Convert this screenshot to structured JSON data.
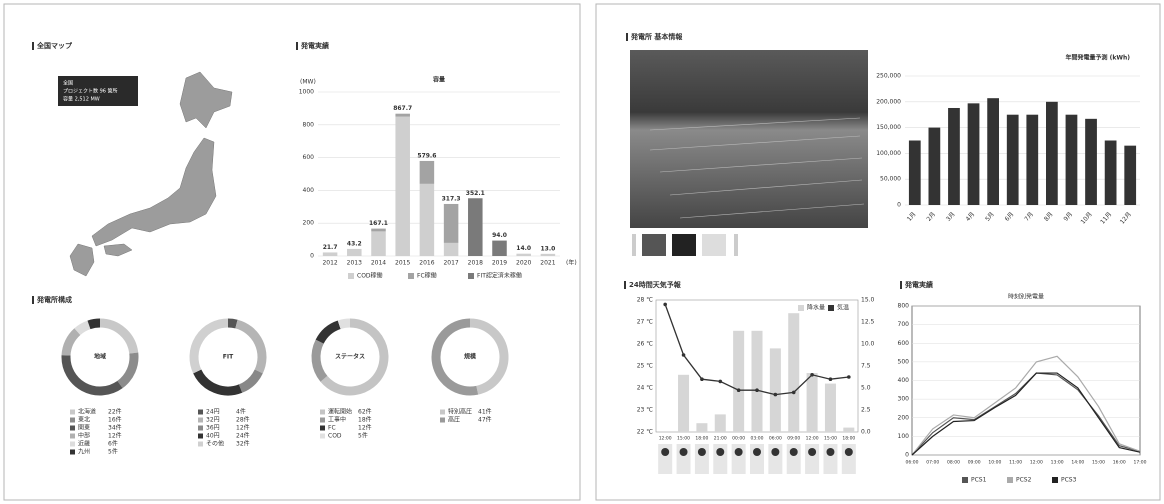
{
  "panels": {
    "map": "全国マップ",
    "results": "発電実績",
    "composition": "発電所構成",
    "plant": "発電所 基本情報",
    "weather": "24時間天気予報",
    "output": "発電実績"
  },
  "map_tooltip": [
    "全国",
    "プロジェクト数 96 箇所",
    "容量 2,512 MW"
  ],
  "chart_data": [
    {
      "type": "stacked_bar",
      "title": "容量",
      "y_label": "(MW)",
      "x_label": "(年)",
      "categories": [
        "2012",
        "2013",
        "2014",
        "2015",
        "2016",
        "2017",
        "2018",
        "2019",
        "2020",
        "2021"
      ],
      "series": [
        {
          "name": "COD稼働",
          "color": "#cfcfcf",
          "values": [
            21.7,
            43.2,
            150,
            850,
            440,
            80,
            0,
            0,
            14,
            13
          ]
        },
        {
          "name": "FC稼働",
          "color": "#a3a3a3",
          "values": [
            0,
            0,
            17.1,
            17.7,
            139.6,
            237.3,
            0,
            0,
            0,
            0
          ]
        },
        {
          "name": "FIT認定済未稼働",
          "color": "#7a7a7a",
          "values": [
            0,
            0,
            0,
            0,
            0,
            0,
            352.1,
            94,
            0,
            0
          ]
        }
      ],
      "totals": [
        "21.7",
        "43.2",
        "167.1",
        "867.7",
        "579.6",
        "317.3",
        "352.1",
        "94.0",
        "14.0",
        "13.0"
      ],
      "ylim": [
        0,
        1000
      ],
      "yticks": [
        0,
        200,
        400,
        600,
        800,
        1000
      ],
      "grid": true,
      "legend": "bottom"
    },
    {
      "type": "donut",
      "title": "地域",
      "categories": [
        "北海道",
        "東北",
        "関東",
        "中部",
        "近畿",
        "九州"
      ],
      "values": [
        22,
        16,
        34,
        12,
        6,
        5
      ],
      "value_labels": [
        "22件",
        "16件",
        "34件",
        "12件",
        "6件",
        "5件"
      ],
      "colors": [
        "#c8c8c8",
        "#8c8c8c",
        "#555555",
        "#b0b0b0",
        "#dddddd",
        "#333333"
      ]
    },
    {
      "type": "donut",
      "title": "FIT",
      "categories": [
        "24円",
        "32円",
        "36円",
        "40円",
        "その他"
      ],
      "values": [
        4,
        28,
        12,
        24,
        32
      ],
      "value_labels": [
        "4件",
        "28件",
        "12件",
        "24件",
        "32件"
      ],
      "colors": [
        "#555555",
        "#b5b5b5",
        "#888888",
        "#333333",
        "#d0d0d0"
      ]
    },
    {
      "type": "donut",
      "title": "ステータス",
      "categories": [
        "運転開始",
        "工事中",
        "FC",
        "COD"
      ],
      "values": [
        62,
        18,
        12,
        5
      ],
      "value_labels": [
        "62件",
        "18件",
        "12件",
        "5件"
      ],
      "colors": [
        "#c4c4c4",
        "#9a9a9a",
        "#333333",
        "#e0e0e0"
      ]
    },
    {
      "type": "donut",
      "title": "規模",
      "categories": [
        "特別高圧",
        "高圧"
      ],
      "values": [
        41,
        47
      ],
      "value_labels": [
        "41件",
        "47件"
      ],
      "colors": [
        "#c8c8c8",
        "#9a9a9a"
      ]
    },
    {
      "type": "bar",
      "title": "年間発電量予測 (kWh)",
      "color": "#333333",
      "categories": [
        "1月",
        "2月",
        "3月",
        "4月",
        "5月",
        "6月",
        "7月",
        "8月",
        "9月",
        "10月",
        "11月",
        "12月"
      ],
      "values": [
        125000,
        150000,
        188000,
        197000,
        207000,
        175000,
        175000,
        200000,
        175000,
        167000,
        125000,
        115000
      ],
      "ylim": [
        0,
        250000
      ],
      "yticks": [
        0,
        {
          "value": 50000,
          "label": "50,000"
        },
        {
          "value": 100000,
          "label": "100,000"
        },
        {
          "value": 150000,
          "label": "150,000"
        },
        {
          "value": 200000,
          "label": "200,000"
        },
        {
          "value": 250000,
          "label": "250,000"
        }
      ],
      "grid": true
    },
    {
      "type": "combo",
      "categories": [
        "12:00",
        "15:00",
        "18:00",
        "21:00",
        "00:00",
        "03:00",
        "06:00",
        "09:00",
        "12:00",
        "15:00",
        "18:00"
      ],
      "series": [
        {
          "name": "降水量",
          "color": "#d6d6d6",
          "axis": "y2",
          "kind": "bar",
          "values": [
            0,
            6.5,
            1,
            2,
            11.5,
            11.5,
            9.5,
            13.5,
            6.7,
            5.5,
            0.5
          ]
        },
        {
          "name": "気温",
          "color": "#333333",
          "axis": "y",
          "kind": "line",
          "values": [
            27.8,
            25.5,
            24.4,
            24.3,
            23.9,
            23.9,
            23.7,
            23.8,
            24.6,
            24.4,
            24.5
          ]
        }
      ],
      "ylim": [
        22,
        28
      ],
      "yticks": [
        {
          "value": 22,
          "label": "22 ℃"
        },
        {
          "value": 23,
          "label": "23 ℃"
        },
        {
          "value": 24,
          "label": "24 ℃"
        },
        {
          "value": 25,
          "label": "25 ℃"
        },
        {
          "value": 26,
          "label": "26 ℃"
        },
        {
          "value": 27,
          "label": "27 ℃"
        },
        {
          "value": 28,
          "label": "28 ℃"
        }
      ],
      "y2lim": [
        0,
        15
      ],
      "y2ticks": [
        {
          "value": 0,
          "label": "0.0"
        },
        2.5,
        {
          "value": 5,
          "label": "5.0"
        },
        7.5,
        {
          "value": 10,
          "label": "10.0"
        },
        12.5,
        {
          "value": 15,
          "label": "15.0"
        }
      ],
      "legend": "top-right"
    },
    {
      "type": "line",
      "title": "時刻別発電量",
      "categories": [
        "06:00",
        "07:00",
        "08:00",
        "09:00",
        "10:00",
        "11:00",
        "12:00",
        "13:00",
        "14:00",
        "15:00",
        "16:00",
        "17:00"
      ],
      "series": [
        {
          "name": "PCS1",
          "color": "#555555",
          "values": [
            0,
            120,
            200,
            190,
            260,
            330,
            440,
            430,
            350,
            210,
            50,
            20
          ]
        },
        {
          "name": "PCS2",
          "color": "#aaaaaa",
          "values": [
            0,
            140,
            215,
            200,
            280,
            360,
            500,
            530,
            420,
            260,
            60,
            20
          ]
        },
        {
          "name": "PCS3",
          "color": "#222222",
          "values": [
            0,
            100,
            180,
            185,
            255,
            320,
            440,
            440,
            360,
            200,
            40,
            15
          ]
        }
      ],
      "ylim": [
        0,
        800
      ],
      "yticks": [
        0,
        100,
        200,
        300,
        400,
        500,
        600,
        700,
        800
      ],
      "grid": true,
      "legend": "bottom"
    }
  ]
}
